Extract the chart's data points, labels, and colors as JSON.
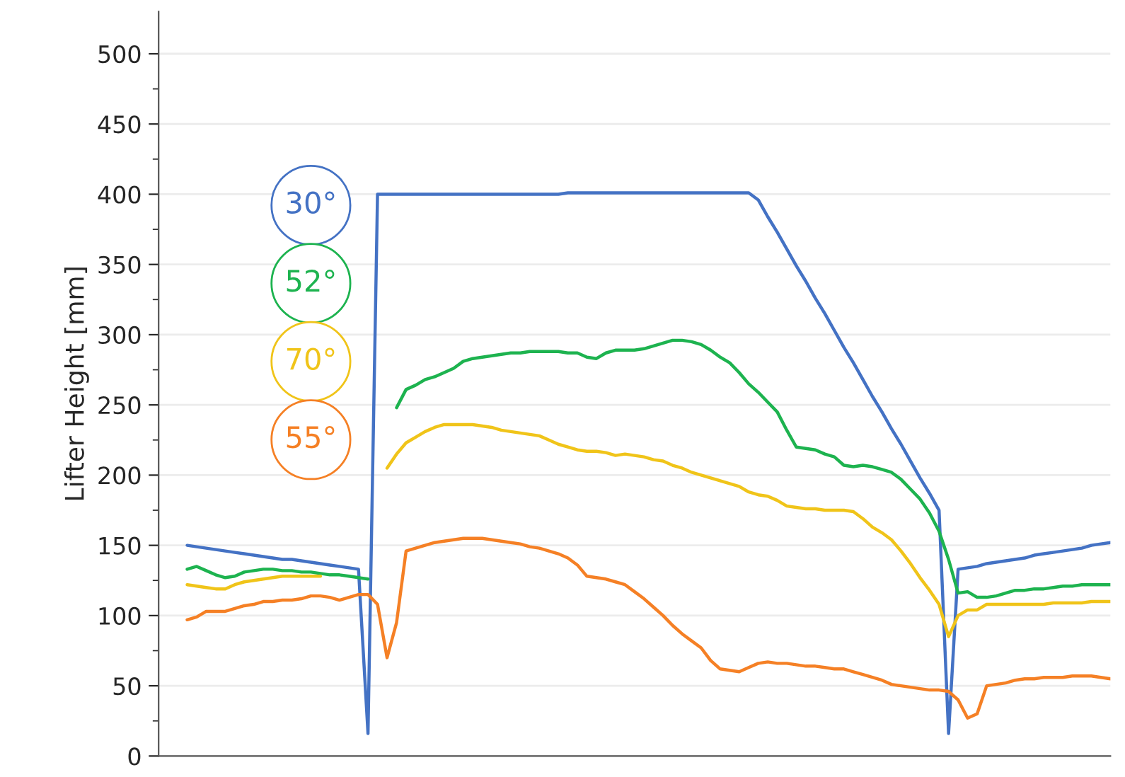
{
  "chart_data": {
    "type": "line",
    "ylabel": "Lifter Height [mm]",
    "categories": [
      null,
      null,
      null,
      null,
      null,
      null,
      null,
      null,
      null,
      null,
      null,
      null,
      null,
      null,
      null,
      null,
      null,
      null,
      null,
      null,
      null,
      null,
      null,
      null,
      null,
      null,
      null,
      null,
      null,
      null,
      null,
      null,
      null,
      null,
      null,
      null,
      null,
      null,
      null,
      null,
      null,
      null,
      null,
      null,
      null,
      null,
      null,
      null,
      null,
      null,
      null,
      null,
      null,
      null,
      null,
      null,
      null,
      null,
      null,
      null,
      null,
      null,
      null,
      null,
      null,
      null,
      null,
      null,
      null,
      null,
      null,
      null,
      null,
      null,
      null,
      null,
      null,
      null,
      null,
      null,
      null,
      null,
      null,
      null,
      null,
      null,
      null,
      null,
      null,
      null,
      null,
      null,
      null,
      null,
      null,
      null,
      null,
      null,
      null,
      null,
      null
    ],
    "ylim": [
      0,
      530
    ],
    "yticks": [
      0,
      50,
      100,
      150,
      200,
      250,
      300,
      350,
      400,
      450,
      500
    ],
    "tick_labels": "y",
    "grid": "y",
    "marker": "none",
    "line_style": "solid",
    "series": [
      {
        "name": "30°",
        "color": "#4472c4",
        "values": [
          null,
          null,
          null,
          150,
          149,
          148,
          147,
          146,
          145,
          144,
          143,
          142,
          141,
          140,
          140,
          139,
          138,
          137,
          136,
          135,
          134,
          133,
          16,
          400,
          400,
          400,
          400,
          400,
          400,
          400,
          400,
          400,
          400,
          400,
          400,
          400,
          400,
          400,
          400,
          400,
          400,
          400,
          400,
          401,
          401,
          401,
          401,
          401,
          401,
          401,
          401,
          401,
          401,
          401,
          401,
          401,
          401,
          401,
          401,
          401,
          401,
          401,
          401,
          396,
          384,
          373,
          361,
          349,
          338,
          326,
          315,
          303,
          291,
          280,
          268,
          256,
          245,
          233,
          222,
          210,
          198,
          187,
          175,
          16,
          133,
          134,
          135,
          137,
          138,
          139,
          140,
          141,
          143,
          144,
          145,
          146,
          147,
          148,
          150,
          151,
          152
        ]
      },
      {
        "name": "52°",
        "color": "#1db34f",
        "values": [
          null,
          null,
          null,
          133,
          135,
          132,
          129,
          127,
          128,
          131,
          132,
          133,
          133,
          132,
          132,
          131,
          131,
          130,
          129,
          129,
          128,
          127,
          126,
          null,
          null,
          248,
          261,
          264,
          268,
          270,
          273,
          276,
          281,
          283,
          284,
          285,
          286,
          287,
          287,
          288,
          288,
          288,
          288,
          287,
          287,
          284,
          283,
          287,
          289,
          289,
          289,
          290,
          292,
          294,
          296,
          296,
          295,
          293,
          289,
          284,
          280,
          273,
          265,
          259,
          252,
          245,
          232,
          220,
          219,
          218,
          215,
          213,
          207,
          206,
          207,
          206,
          204,
          202,
          197,
          190,
          183,
          173,
          160,
          140,
          116,
          117,
          113,
          113,
          114,
          116,
          118,
          118,
          119,
          119,
          120,
          121,
          121,
          122,
          122,
          122,
          122
        ]
      },
      {
        "name": "70°",
        "color": "#f0c419",
        "values": [
          null,
          null,
          null,
          122,
          121,
          120,
          119,
          119,
          122,
          124,
          125,
          126,
          127,
          128,
          128,
          128,
          128,
          128,
          null,
          null,
          null,
          null,
          null,
          null,
          205,
          215,
          223,
          227,
          231,
          234,
          236,
          236,
          236,
          236,
          235,
          234,
          232,
          231,
          230,
          229,
          228,
          225,
          222,
          220,
          218,
          217,
          217,
          216,
          214,
          215,
          214,
          213,
          211,
          210,
          207,
          205,
          202,
          200,
          198,
          196,
          194,
          192,
          188,
          186,
          185,
          182,
          178,
          177,
          176,
          176,
          175,
          175,
          175,
          174,
          169,
          163,
          159,
          154,
          146,
          137,
          127,
          118,
          108,
          85,
          100,
          104,
          104,
          108,
          108,
          108,
          108,
          108,
          108,
          108,
          109,
          109,
          109,
          109,
          110,
          110,
          110
        ]
      },
      {
        "name": "55°",
        "color": "#f58025",
        "values": [
          null,
          null,
          null,
          97,
          99,
          103,
          103,
          103,
          105,
          107,
          108,
          110,
          110,
          111,
          111,
          112,
          114,
          114,
          113,
          111,
          113,
          115,
          115,
          108,
          70,
          95,
          146,
          148,
          150,
          152,
          153,
          154,
          155,
          155,
          155,
          154,
          153,
          152,
          151,
          149,
          148,
          146,
          144,
          141,
          136,
          128,
          127,
          126,
          124,
          122,
          117,
          112,
          106,
          100,
          93,
          87,
          82,
          77,
          68,
          62,
          61,
          60,
          63,
          66,
          67,
          66,
          66,
          65,
          64,
          64,
          63,
          62,
          62,
          60,
          58,
          56,
          54,
          51,
          50,
          49,
          48,
          47,
          47,
          46,
          40,
          27,
          30,
          50,
          51,
          52,
          54,
          55,
          55,
          56,
          56,
          56,
          57,
          57,
          57,
          56,
          55
        ]
      }
    ]
  }
}
